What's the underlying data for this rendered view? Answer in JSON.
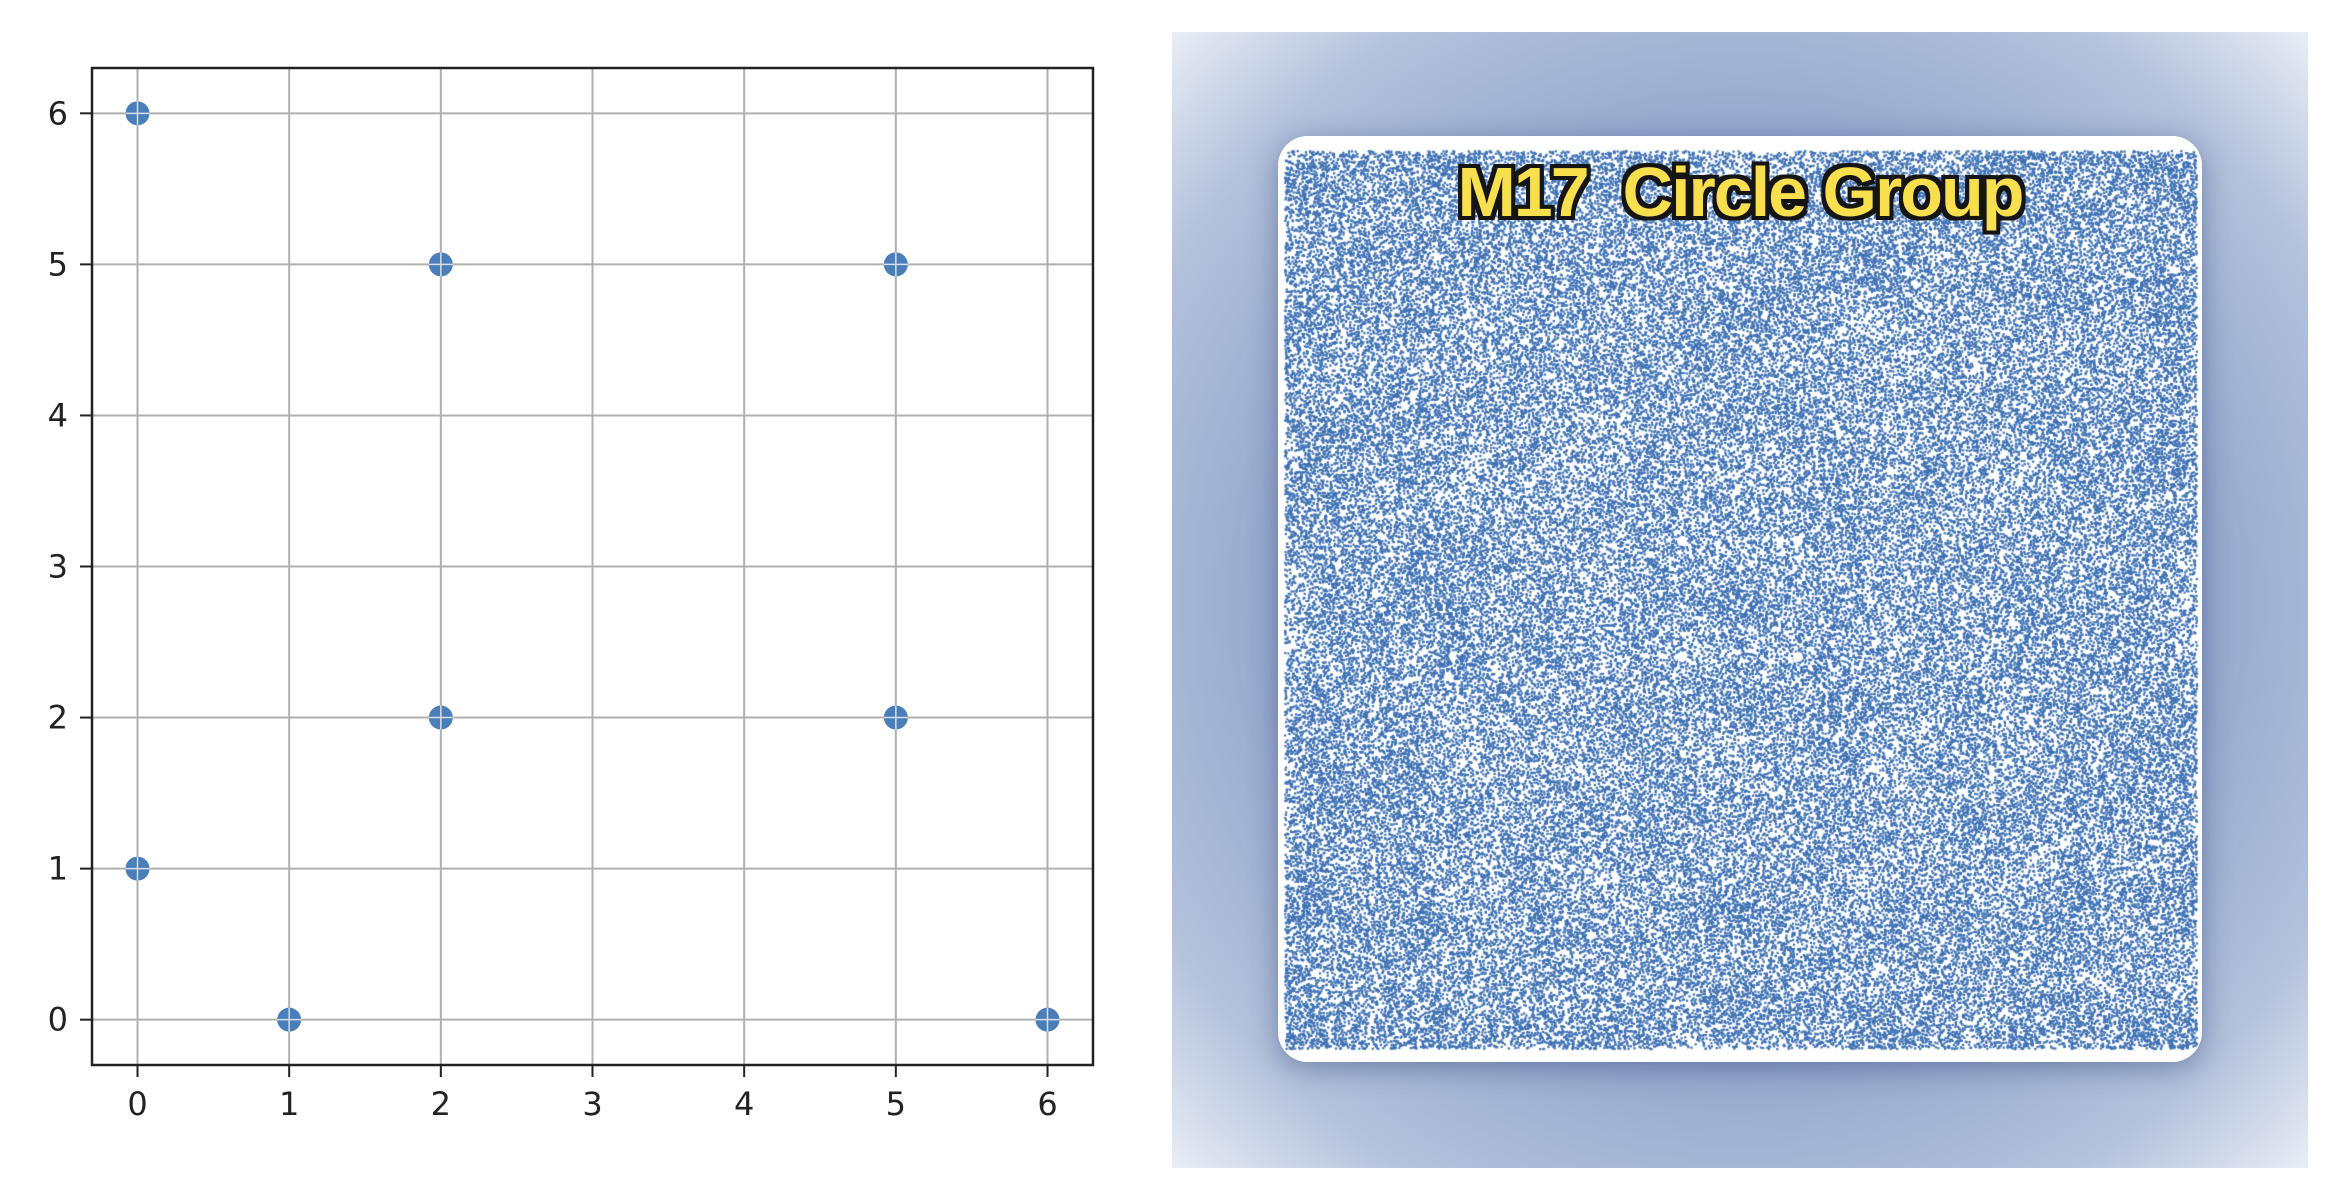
{
  "chart_data": [
    {
      "type": "scatter",
      "title": "",
      "xlabel": "",
      "ylabel": "",
      "x": [
        0,
        0,
        1,
        2,
        2,
        5,
        5,
        6
      ],
      "y": [
        6,
        1,
        0,
        5,
        2,
        5,
        2,
        0
      ],
      "xlim": [
        -0.3,
        6.3
      ],
      "ylim": [
        -0.3,
        6.3
      ],
      "xticks": [
        0,
        1,
        2,
        3,
        4,
        5,
        6
      ],
      "yticks": [
        0,
        1,
        2,
        3,
        4,
        5,
        6
      ],
      "xtick_labels": [
        "0",
        "1",
        "2",
        "3",
        "4",
        "5",
        "6"
      ],
      "ytick_labels": [
        "0",
        "1",
        "2",
        "3",
        "4",
        "5",
        "6"
      ],
      "grid": true,
      "marker_color": "#4a7eb8"
    },
    {
      "type": "scatter",
      "title": "M17  Circle Group",
      "description_visible": "dense point cloud filling square",
      "marker_color": "#3f72b5",
      "title_color": "#f7df4e",
      "background_color": "#8fa3c9"
    }
  ]
}
